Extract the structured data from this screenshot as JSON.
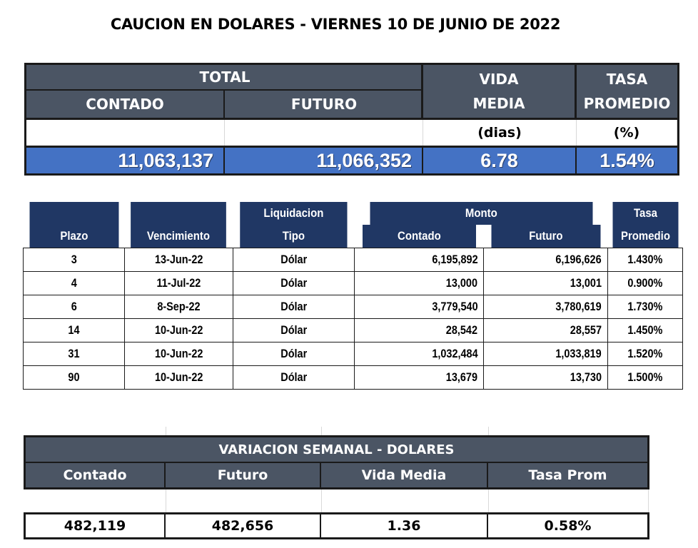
{
  "title": "CAUCION EN DOLARES - VIERNES  10 DE JUNIO DE 2022",
  "summary": {
    "total_label": "TOTAL",
    "contado_label": "CONTADO",
    "futuro_label": "FUTURO",
    "vida_label_1": "VIDA",
    "vida_label_2": "MEDIA",
    "tasa_label_1": "TASA",
    "tasa_label_2": "PROMEDIO",
    "vida_unit": "(dias)",
    "tasa_unit": "(%)",
    "contado_value": "11,063,137",
    "futuro_value": "11,066,352",
    "vida_value": "6.78",
    "tasa_value": "1.54%"
  },
  "detail": {
    "headers": {
      "liquidacion": "Liquidacion",
      "monto": "Monto",
      "tasa": "Tasa",
      "plazo": "Plazo",
      "vencimiento": "Vencimiento",
      "tipo": "Tipo",
      "contado": "Contado",
      "futuro": "Futuro",
      "promedio": "Promedio"
    },
    "rows": [
      {
        "plazo": "3",
        "vencimiento": "13-Jun-22",
        "tipo": "Dólar",
        "contado": "6,195,892",
        "futuro": "6,196,626",
        "tasa": "1.430%"
      },
      {
        "plazo": "4",
        "vencimiento": "11-Jul-22",
        "tipo": "Dólar",
        "contado": "13,000",
        "futuro": "13,001",
        "tasa": "0.900%"
      },
      {
        "plazo": "6",
        "vencimiento": "8-Sep-22",
        "tipo": "Dólar",
        "contado": "3,779,540",
        "futuro": "3,780,619",
        "tasa": "1.730%"
      },
      {
        "plazo": "14",
        "vencimiento": "10-Jun-22",
        "tipo": "Dólar",
        "contado": "28,542",
        "futuro": "28,557",
        "tasa": "1.450%"
      },
      {
        "plazo": "31",
        "vencimiento": "10-Jun-22",
        "tipo": "Dólar",
        "contado": "1,032,484",
        "futuro": "1,033,819",
        "tasa": "1.520%"
      },
      {
        "plazo": "90",
        "vencimiento": "10-Jun-22",
        "tipo": "Dólar",
        "contado": "13,679",
        "futuro": "13,730",
        "tasa": "1.500%"
      }
    ]
  },
  "weekly": {
    "title": "VARIACION SEMANAL - DOLARES",
    "headers": [
      "Contado",
      "Futuro",
      "Vida Media",
      "Tasa Prom"
    ],
    "values": [
      "482,119",
      "482,656",
      "1.36",
      "0.58%"
    ]
  },
  "colors": {
    "header_gray": "#4b5564",
    "header_navy": "#203764",
    "value_blue": "#4472c4"
  }
}
